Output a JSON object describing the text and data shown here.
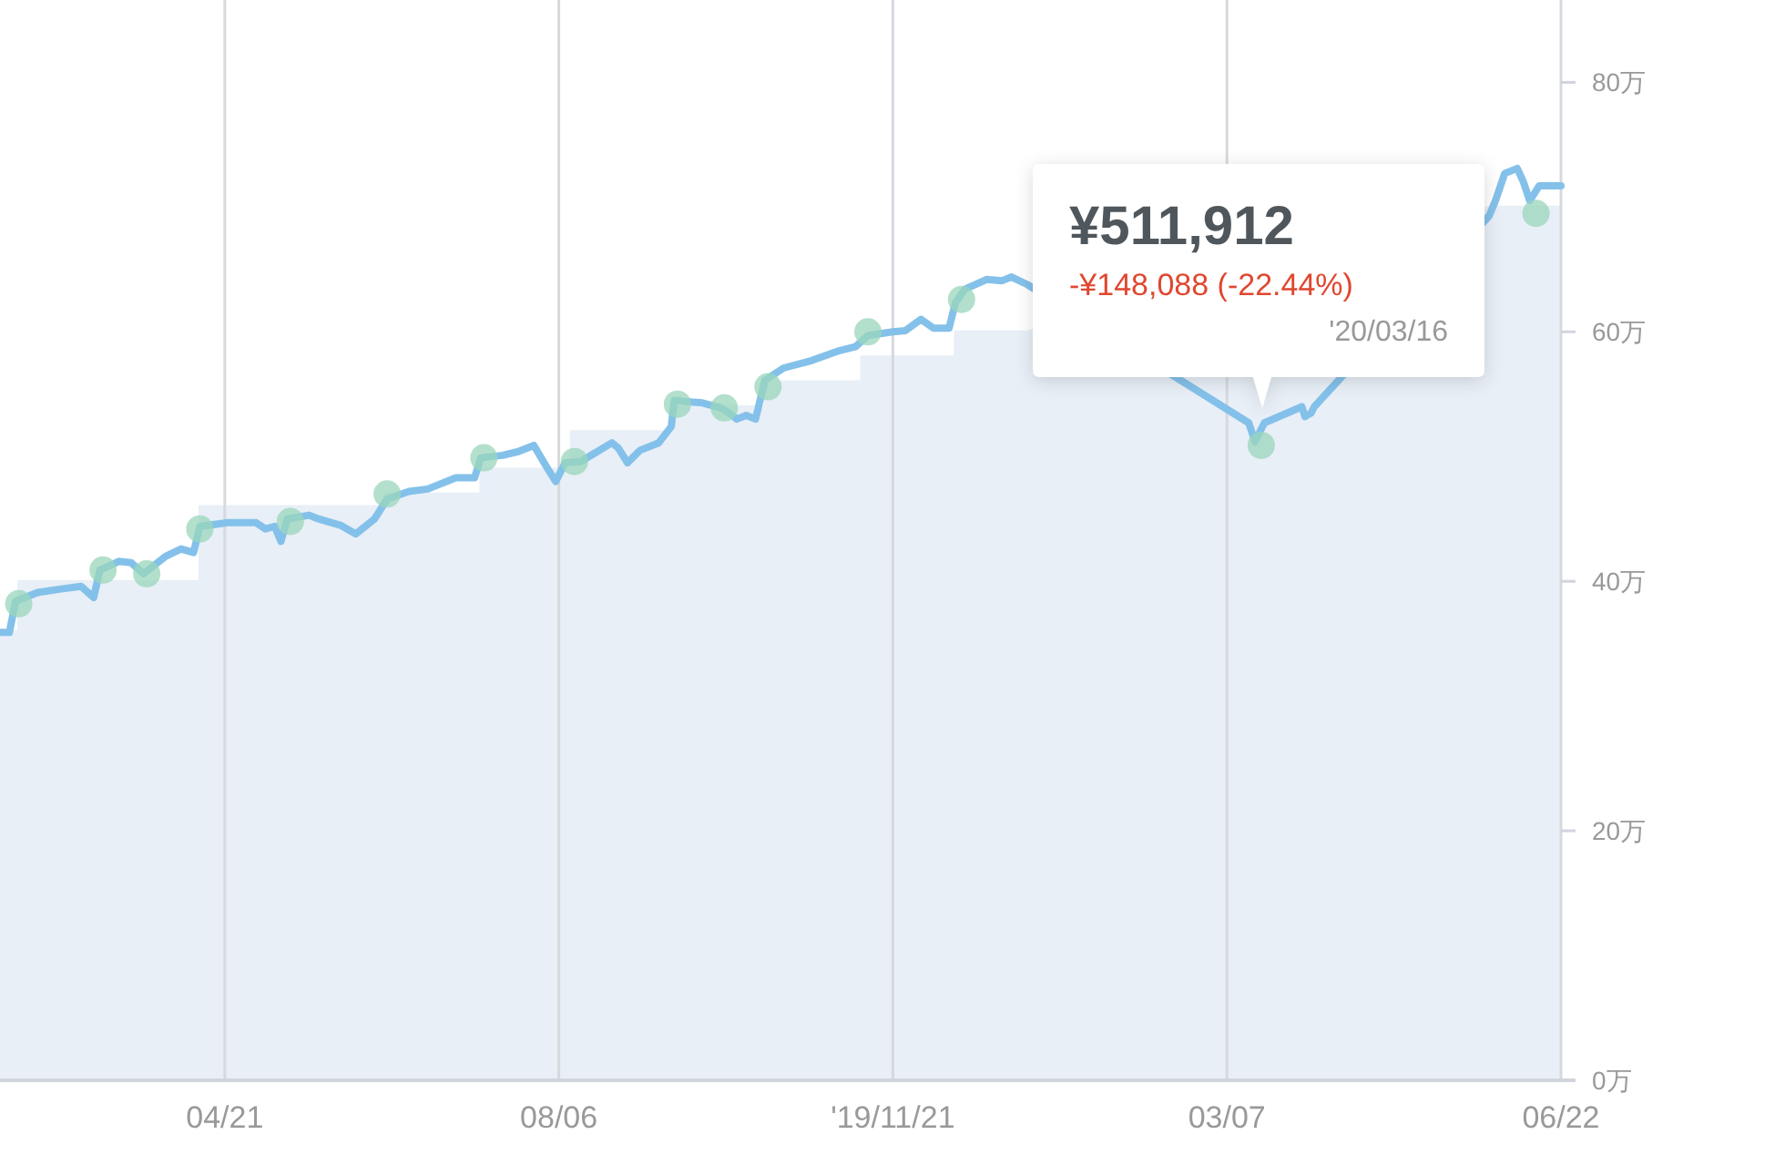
{
  "chart_data": {
    "type": "line",
    "xlim": [
      "2019-02-08",
      "2020-06-22"
    ],
    "xticks": [
      {
        "value": "2019-04-21",
        "label": "04/21"
      },
      {
        "value": "2019-08-06",
        "label": "08/06"
      },
      {
        "value": "2019-11-21",
        "label": "'19/11/21"
      },
      {
        "value": "2020-03-07",
        "label": "03/07"
      },
      {
        "value": "2020-06-22",
        "label": "06/22"
      }
    ],
    "ylim": [
      0,
      86.6
    ],
    "yticks": [
      {
        "value": 0,
        "label": "0万"
      },
      {
        "value": 20,
        "label": "20万"
      },
      {
        "value": 40,
        "label": "40万"
      },
      {
        "value": 60,
        "label": "60万"
      },
      {
        "value": 80,
        "label": "80万"
      }
    ],
    "grid": "x",
    "series": [
      {
        "type": "area",
        "color": "#e8eff7",
        "x": [
          "2019-02-08",
          "2019-02-14",
          "2019-02-14",
          "2019-04-13",
          "2019-04-13",
          "2019-06-11",
          "2019-06-11",
          "2019-07-12",
          "2019-07-12",
          "2019-08-10",
          "2019-08-10",
          "2019-09-12",
          "2019-09-12",
          "2019-10-11",
          "2019-10-11",
          "2019-11-11",
          "2019-11-11",
          "2019-12-11",
          "2019-12-11",
          "2020-01-03",
          "2020-05-30",
          "2020-06-22"
        ],
        "values": [
          36,
          36,
          40,
          40,
          46,
          46,
          47,
          47,
          49,
          49,
          52,
          52,
          54,
          54,
          56,
          56,
          58,
          58,
          60,
          60,
          70,
          70
        ]
      },
      {
        "color": "#84c1ea",
        "x": [
          "2019-02-08",
          "2019-02-11",
          "2019-02-13",
          "2019-02-20",
          "2019-02-28",
          "2019-03-06",
          "2019-03-10",
          "2019-03-12",
          "2019-03-18",
          "2019-03-22",
          "2019-03-26",
          "2019-04-02",
          "2019-04-07",
          "2019-04-11",
          "2019-04-13",
          "2019-04-22",
          "2019-05-01",
          "2019-05-04",
          "2019-05-07",
          "2019-05-09",
          "2019-05-11",
          "2019-05-18",
          "2019-05-21",
          "2019-05-28",
          "2019-06-02",
          "2019-06-08",
          "2019-06-12",
          "2019-06-19",
          "2019-06-25",
          "2019-07-04",
          "2019-07-10",
          "2019-07-12",
          "2019-07-19",
          "2019-07-24",
          "2019-07-29",
          "2019-08-02",
          "2019-08-05",
          "2019-08-08",
          "2019-08-13",
          "2019-08-17",
          "2019-08-23",
          "2019-08-25",
          "2019-08-28",
          "2019-09-01",
          "2019-09-07",
          "2019-09-11",
          "2019-09-12",
          "2019-09-21",
          "2019-09-27",
          "2019-09-30",
          "2019-10-02",
          "2019-10-05",
          "2019-10-08",
          "2019-10-11",
          "2019-10-17",
          "2019-10-26",
          "2019-11-04",
          "2019-11-09",
          "2019-11-13",
          "2019-11-21",
          "2019-11-25",
          "2019-11-30",
          "2019-12-04",
          "2019-12-09",
          "2019-12-11",
          "2019-12-14",
          "2019-12-21",
          "2019-12-26",
          "2019-12-29",
          "2020-01-03",
          "2020-03-14",
          "2020-03-16",
          "2020-03-19",
          "2020-03-31",
          "2020-04-01",
          "2020-04-03",
          "2020-04-04",
          "2020-05-30",
          "2020-06-01",
          "2020-06-04",
          "2020-06-08",
          "2020-06-10",
          "2020-06-12",
          "2020-06-15",
          "2020-06-18",
          "2020-06-22"
        ],
        "values": [
          35.9,
          35.9,
          38.4,
          39.1,
          39.4,
          39.6,
          38.7,
          40.9,
          41.6,
          41.5,
          40.6,
          42.0,
          42.6,
          42.3,
          44.4,
          44.7,
          44.7,
          44.2,
          44.4,
          43.2,
          45.0,
          45.3,
          45.0,
          44.5,
          43.8,
          45.0,
          46.6,
          47.2,
          47.4,
          48.3,
          48.3,
          49.9,
          50.1,
          50.4,
          50.9,
          49.2,
          48.0,
          49.5,
          49.6,
          50.2,
          51.1,
          50.7,
          49.5,
          50.5,
          51.1,
          52.4,
          54.5,
          54.3,
          53.9,
          53.4,
          53.0,
          53.3,
          53.0,
          56.1,
          57.1,
          57.7,
          58.5,
          58.8,
          59.7,
          60.0,
          60.1,
          61.0,
          60.3,
          60.3,
          62.3,
          63.4,
          64.2,
          64.1,
          64.4,
          63.8,
          52.7,
          51.2,
          52.7,
          54.0,
          53.2,
          53.5,
          54.0,
          69.3,
          70.5,
          72.7,
          73.1,
          72.0,
          70.5,
          71.7,
          71.7,
          71.7
        ]
      },
      {
        "type": "scatter",
        "color": "#9ad6bb",
        "marker": "circle",
        "x": [
          "2019-02-14",
          "2019-03-13",
          "2019-03-27",
          "2019-04-13",
          "2019-05-12",
          "2019-06-12",
          "2019-07-13",
          "2019-08-11",
          "2019-09-13",
          "2019-09-28",
          "2019-10-12",
          "2019-11-13",
          "2019-12-13",
          "2020-03-18",
          "2020-06-14"
        ],
        "values": [
          38.2,
          40.9,
          40.6,
          44.2,
          44.8,
          47.0,
          49.9,
          49.6,
          54.2,
          53.9,
          55.6,
          60.0,
          62.6,
          50.9,
          69.5
        ]
      }
    ],
    "annotations": [
      "¥511,912",
      "-¥148,088 (-22.44%)",
      "'20/03/16"
    ]
  }
}
